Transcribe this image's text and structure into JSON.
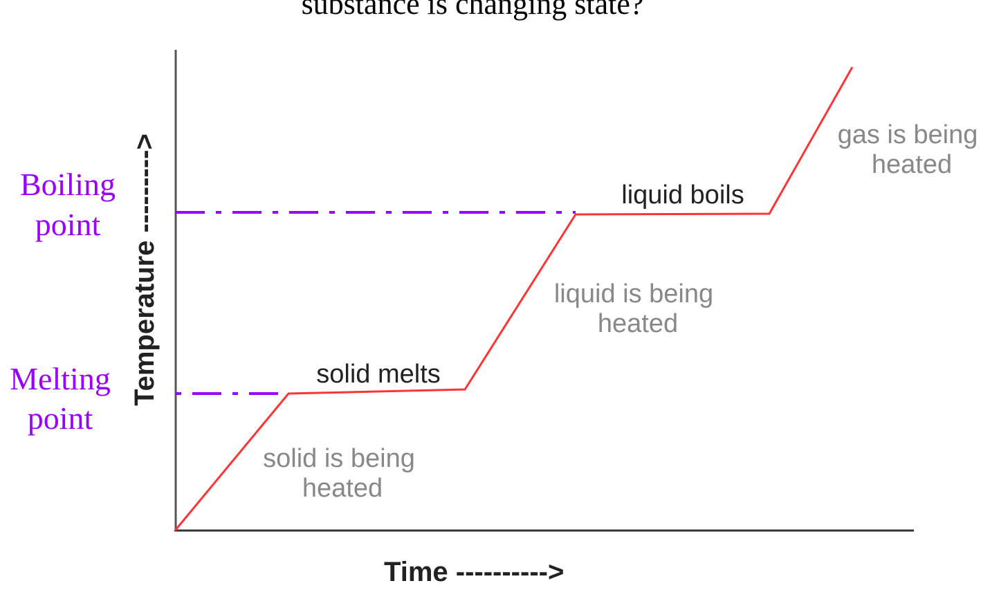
{
  "title": "substance is changing state?",
  "axes": {
    "y_label": "Temperature --------->",
    "x_label": "Time ---------->"
  },
  "reference_lines": [
    {
      "label_line1": "Boiling",
      "label_line2": "point",
      "color": "#9900ff"
    },
    {
      "label_line1": "Melting",
      "label_line2": "point",
      "color": "#9900ff"
    }
  ],
  "phases": {
    "solid_heated": {
      "line1": "solid is being",
      "line2": "heated"
    },
    "solid_melts": "solid melts",
    "liquid_heated": {
      "line1": "liquid is being",
      "line2": "heated"
    },
    "liquid_boils": "liquid boils",
    "gas_heated": {
      "line1": "gas is being",
      "line2": "heated"
    }
  },
  "colors": {
    "curve": "#ff3333",
    "axis": "#333333",
    "reference": "#9900ff",
    "phase_change_text": "#222222",
    "heating_text": "#888888"
  }
}
